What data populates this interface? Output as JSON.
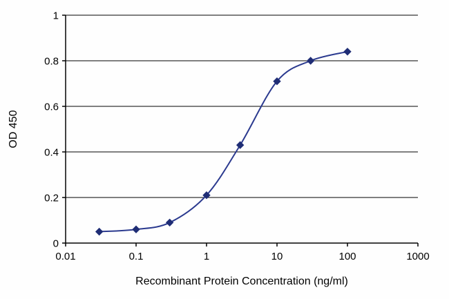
{
  "chart_data": {
    "type": "line",
    "title": "",
    "xlabel": "Recombinant Protein Concentration (ng/ml)",
    "ylabel": "OD 450",
    "xscale": "log",
    "xlim": [
      0.01,
      1000
    ],
    "ylim": [
      0,
      1
    ],
    "x": [
      0.03,
      0.1,
      0.3,
      1,
      3,
      10,
      30,
      100
    ],
    "y": [
      0.05,
      0.06,
      0.09,
      0.21,
      0.43,
      0.71,
      0.8,
      0.84
    ],
    "x_ticks": [
      0.01,
      0.1,
      1,
      10,
      100,
      1000
    ],
    "x_tick_labels": [
      "0.01",
      "0.1",
      "1",
      "10",
      "100",
      "1000"
    ],
    "y_ticks": [
      0,
      0.2,
      0.4,
      0.6,
      0.8,
      1
    ],
    "y_tick_labels": [
      "0",
      "0.2",
      "0.4",
      "0.6",
      "0.8",
      "1"
    ],
    "grid": "horizontal",
    "legend": "none",
    "line_color": "#2b3a8f",
    "marker": "diamond",
    "marker_color": "#1f2d75",
    "axis_color": "#000000",
    "background_color": "#fefefe"
  }
}
